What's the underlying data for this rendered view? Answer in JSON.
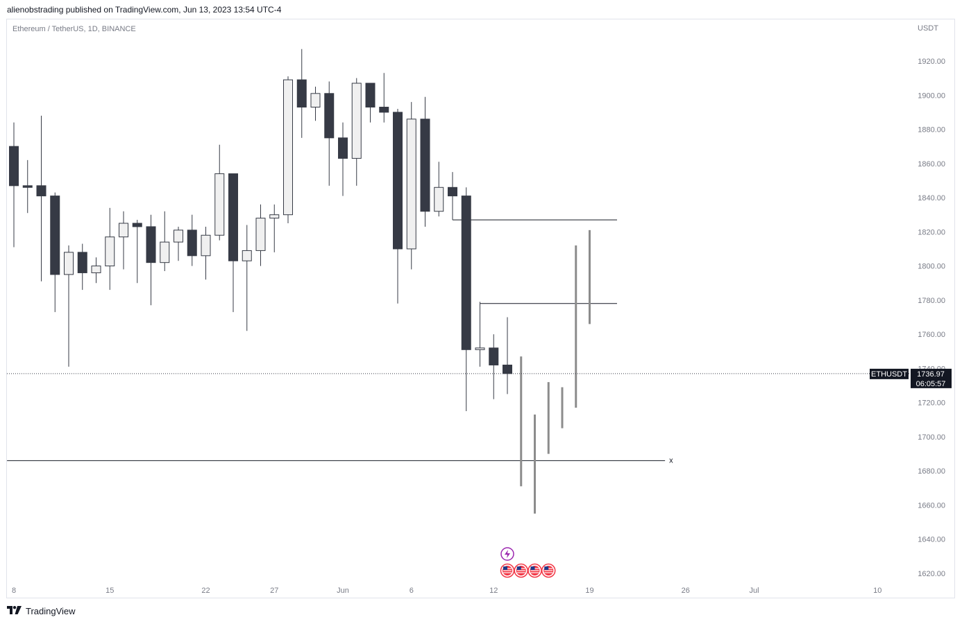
{
  "header": {
    "published_text": "alienobstrading published on TradingView.com, Jun 13, 2023 13:54 UTC-4"
  },
  "footer": {
    "logo_icon": "tradingview-logo-icon",
    "brand": "TradingView"
  },
  "colors": {
    "bear": "#363a45",
    "bull": "#f0f0f0",
    "outline": "#363a45",
    "projection": "#8c8c8c",
    "axis_text": "#787b86",
    "event_purple": "#9c27b0",
    "event_red": "#f23645"
  },
  "chart_data": {
    "type": "candlestick",
    "symbol_label": "Ethereum / TetherUS, 1D, BINANCE",
    "price_currency": "USDT",
    "ylim": [
      1612,
      1948
    ],
    "y_ticks": [
      1620,
      1640,
      1660,
      1680,
      1700,
      1720,
      1740,
      1760,
      1780,
      1800,
      1820,
      1840,
      1860,
      1880,
      1900,
      1920
    ],
    "y_tick_labels": [
      "1620.00",
      "1640.00",
      "1660.00",
      "1680.00",
      "1700.00",
      "1720.00",
      "1740.00",
      "1760.00",
      "1780.00",
      "1800.00",
      "1820.00",
      "1840.00",
      "1860.00",
      "1880.00",
      "1900.00",
      "1920.00"
    ],
    "x_ticks": [
      {
        "idx": 0,
        "label": "8"
      },
      {
        "idx": 7,
        "label": "15"
      },
      {
        "idx": 14,
        "label": "22"
      },
      {
        "idx": 19,
        "label": "27"
      },
      {
        "idx": 24,
        "label": "Jun"
      },
      {
        "idx": 29,
        "label": "6"
      },
      {
        "idx": 35,
        "label": "12"
      },
      {
        "idx": 42,
        "label": "19"
      },
      {
        "idx": 49,
        "label": "26"
      },
      {
        "idx": 54,
        "label": "Jul"
      },
      {
        "idx": 63,
        "label": "10"
      }
    ],
    "candles": [
      {
        "o": 1870,
        "h": 1884,
        "l": 1811,
        "c": 1847
      },
      {
        "o": 1847,
        "h": 1862,
        "l": 1831,
        "c": 1846
      },
      {
        "o": 1847,
        "h": 1888,
        "l": 1791,
        "c": 1841
      },
      {
        "o": 1841,
        "h": 1843,
        "l": 1773,
        "c": 1795
      },
      {
        "o": 1795,
        "h": 1812,
        "l": 1741,
        "c": 1808
      },
      {
        "o": 1808,
        "h": 1813,
        "l": 1786,
        "c": 1796
      },
      {
        "o": 1796,
        "h": 1805,
        "l": 1790,
        "c": 1800
      },
      {
        "o": 1800,
        "h": 1834,
        "l": 1786,
        "c": 1817
      },
      {
        "o": 1817,
        "h": 1832,
        "l": 1798,
        "c": 1825
      },
      {
        "o": 1825,
        "h": 1827,
        "l": 1790,
        "c": 1823
      },
      {
        "o": 1823,
        "h": 1830,
        "l": 1777,
        "c": 1802
      },
      {
        "o": 1802,
        "h": 1832,
        "l": 1797,
        "c": 1814
      },
      {
        "o": 1814,
        "h": 1823,
        "l": 1803,
        "c": 1821
      },
      {
        "o": 1821,
        "h": 1830,
        "l": 1800,
        "c": 1806
      },
      {
        "o": 1806,
        "h": 1823,
        "l": 1792,
        "c": 1818
      },
      {
        "o": 1818,
        "h": 1871,
        "l": 1815,
        "c": 1854
      },
      {
        "o": 1854,
        "h": 1854,
        "l": 1773,
        "c": 1803
      },
      {
        "o": 1803,
        "h": 1824,
        "l": 1762,
        "c": 1809
      },
      {
        "o": 1809,
        "h": 1836,
        "l": 1800,
        "c": 1828
      },
      {
        "o": 1828,
        "h": 1836,
        "l": 1808,
        "c": 1830
      },
      {
        "o": 1830,
        "h": 1911,
        "l": 1825,
        "c": 1909
      },
      {
        "o": 1909,
        "h": 1927,
        "l": 1875,
        "c": 1893
      },
      {
        "o": 1893,
        "h": 1905,
        "l": 1885,
        "c": 1901
      },
      {
        "o": 1901,
        "h": 1908,
        "l": 1847,
        "c": 1875
      },
      {
        "o": 1875,
        "h": 1884,
        "l": 1841,
        "c": 1863
      },
      {
        "o": 1863,
        "h": 1910,
        "l": 1847,
        "c": 1907
      },
      {
        "o": 1907,
        "h": 1907,
        "l": 1884,
        "c": 1893
      },
      {
        "o": 1893,
        "h": 1913,
        "l": 1884,
        "c": 1890
      },
      {
        "o": 1890,
        "h": 1892,
        "l": 1778,
        "c": 1810
      },
      {
        "o": 1810,
        "h": 1896,
        "l": 1798,
        "c": 1886
      },
      {
        "o": 1886,
        "h": 1899,
        "l": 1823,
        "c": 1832
      },
      {
        "o": 1832,
        "h": 1861,
        "l": 1829,
        "c": 1846
      },
      {
        "o": 1846,
        "h": 1855,
        "l": 1827,
        "c": 1841
      },
      {
        "o": 1841,
        "h": 1846,
        "l": 1715,
        "c": 1751
      },
      {
        "o": 1751,
        "h": 1779,
        "l": 1741,
        "c": 1752
      },
      {
        "o": 1752,
        "h": 1760,
        "l": 1722,
        "c": 1742
      },
      {
        "o": 1742,
        "h": 1770,
        "l": 1725,
        "c": 1737
      }
    ],
    "projection_lines": [
      {
        "idx": 37,
        "low": 1671,
        "high": 1747
      },
      {
        "idx": 38,
        "low": 1655,
        "high": 1713
      },
      {
        "idx": 39,
        "low": 1690,
        "high": 1732
      },
      {
        "idx": 40,
        "low": 1705,
        "high": 1729
      },
      {
        "idx": 41,
        "low": 1717,
        "high": 1812
      },
      {
        "idx": 42,
        "low": 1766,
        "high": 1821
      }
    ],
    "horizontal_lines": [
      {
        "price": 1827,
        "from_idx": 32,
        "to_idx": 44
      },
      {
        "price": 1778,
        "from_idx": 34,
        "to_idx": 44
      },
      {
        "price": 1686,
        "from_idx": -0.5,
        "to_idx": 47.5,
        "end_marker": "x"
      }
    ],
    "vertical_marks": [
      {
        "idx": 34,
        "from": 1751,
        "to": 1778
      }
    ],
    "last_price": {
      "value": 1736.97,
      "symbol": "ETHUSDT",
      "label": "1736.97",
      "countdown": "06:05:57"
    },
    "events": [
      {
        "idx": 36,
        "row": 0,
        "type": "lightning-icon"
      },
      {
        "idx": 36,
        "row": 1,
        "type": "us-flag-icon"
      },
      {
        "idx": 37,
        "row": 1,
        "type": "us-flag-icon"
      },
      {
        "idx": 38,
        "row": 1,
        "type": "us-flag-icon"
      },
      {
        "idx": 39,
        "row": 1,
        "type": "us-flag-icon"
      }
    ]
  }
}
